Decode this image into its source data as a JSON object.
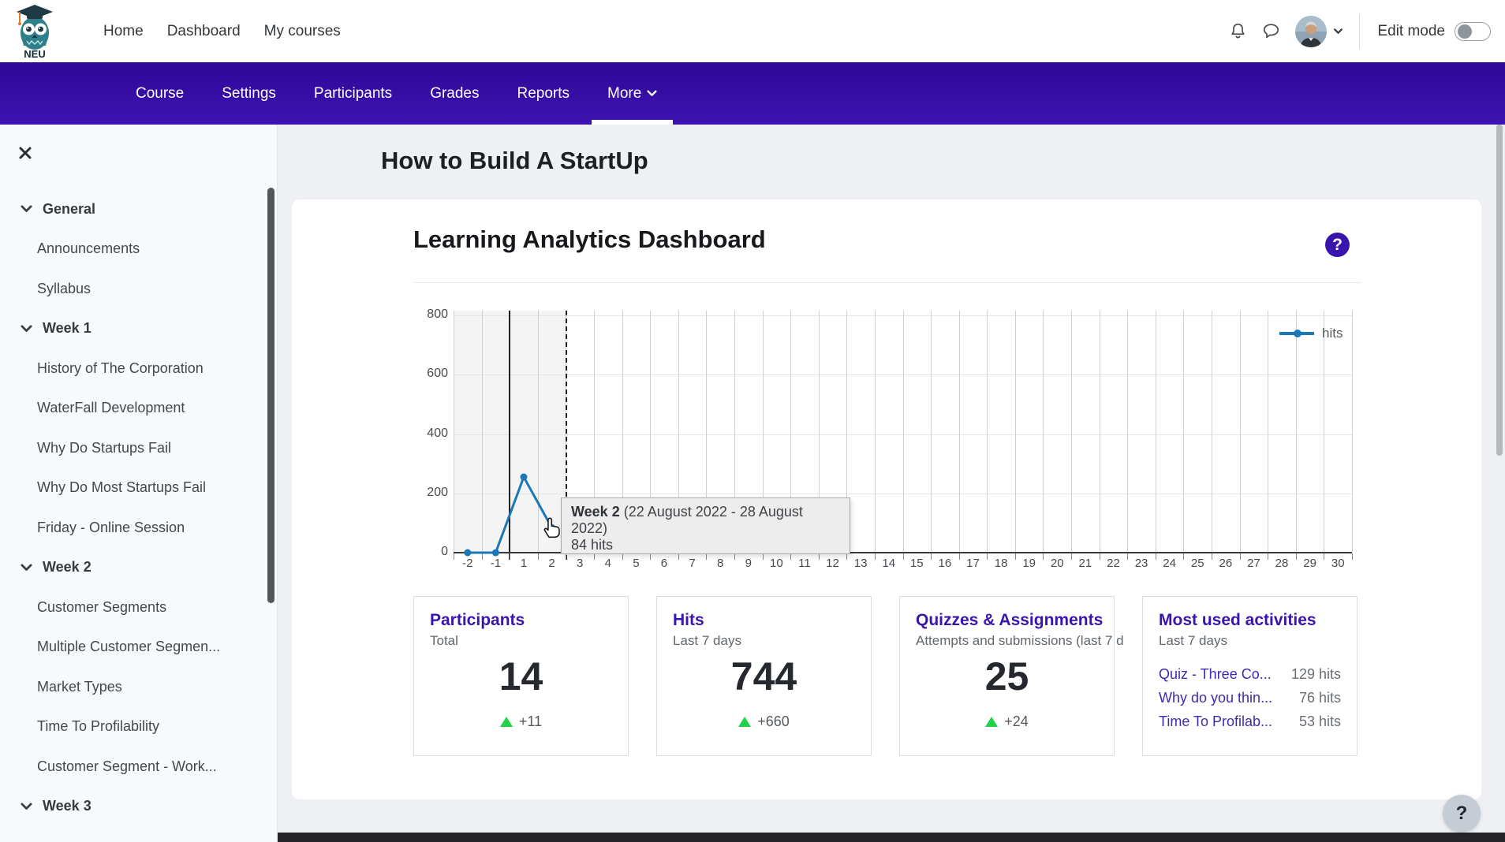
{
  "topbar": {
    "logo": "NEU",
    "nav_items": [
      "Home",
      "Dashboard",
      "My courses"
    ],
    "edit_mode_label": "Edit mode"
  },
  "course_nav": {
    "tabs": [
      "Course",
      "Settings",
      "Participants",
      "Grades",
      "Reports",
      "More"
    ],
    "active_tab": "More"
  },
  "sidebar": {
    "items": [
      {
        "type": "section",
        "label": "General"
      },
      {
        "type": "link",
        "label": "Announcements"
      },
      {
        "type": "link",
        "label": "Syllabus"
      },
      {
        "type": "section",
        "label": "Week 1"
      },
      {
        "type": "link",
        "label": "History of The Corporation"
      },
      {
        "type": "link",
        "label": "WaterFall Development"
      },
      {
        "type": "link",
        "label": "Why Do Startups Fail"
      },
      {
        "type": "link",
        "label": "Why Do Most Startups Fail"
      },
      {
        "type": "link",
        "label": "Friday - Online Session"
      },
      {
        "type": "section",
        "label": "Week 2"
      },
      {
        "type": "link",
        "label": "Customer Segments"
      },
      {
        "type": "link",
        "label": "Multiple Customer Segmen..."
      },
      {
        "type": "link",
        "label": "Market Types"
      },
      {
        "type": "link",
        "label": "Time To Profilability"
      },
      {
        "type": "link",
        "label": "Customer Segment - Work..."
      },
      {
        "type": "section",
        "label": "Week 3"
      }
    ]
  },
  "page_title": "How to Build A StartUp",
  "panel": {
    "heading": "Learning Analytics Dashboard",
    "help_label": "?"
  },
  "chart_data": {
    "type": "line",
    "x_categories": [
      "-2",
      "-1",
      "1",
      "2",
      "3",
      "4",
      "5",
      "6",
      "7",
      "8",
      "9",
      "10",
      "11",
      "12",
      "13",
      "14",
      "15",
      "16",
      "17",
      "18",
      "19",
      "20",
      "21",
      "22",
      "23",
      "24",
      "25",
      "26",
      "27",
      "28",
      "29",
      "30"
    ],
    "xlabel": "",
    "ylabel": "",
    "ylim": [
      0,
      800
    ],
    "yticks": [
      0,
      200,
      400,
      600,
      800
    ],
    "grid": true,
    "legend": {
      "position": "top-right",
      "entries": [
        "hits"
      ]
    },
    "series": [
      {
        "name": "hits",
        "color": "#1b77b5",
        "points": [
          {
            "x": "-2",
            "y": 0
          },
          {
            "x": "-1",
            "y": 0
          },
          {
            "x": "1",
            "y": 255
          },
          {
            "x": "2",
            "y": 84
          }
        ]
      }
    ],
    "annotations": {
      "course_start_vline_between": [
        "-1",
        "1"
      ],
      "current_time_dashed_vline_between": [
        "2",
        "3"
      ],
      "shaded_past_region": true
    }
  },
  "chart_tooltip": {
    "title_bold": "Week 2",
    "title_rest": "(22 August 2022 - 28 August 2022)",
    "value": "84 hits"
  },
  "stat_cards": [
    {
      "title": "Participants",
      "subtitle": "Total",
      "value": "14",
      "delta": "+11"
    },
    {
      "title": "Hits",
      "subtitle": "Last 7 days",
      "value": "744",
      "delta": "+660"
    },
    {
      "title": "Quizzes & Assignments",
      "subtitle": "Attempts and submissions (last 7 d",
      "value": "25",
      "delta": "+24"
    }
  ],
  "activities_card": {
    "title": "Most used activities",
    "subtitle": "Last 7 days",
    "rows": [
      {
        "label": "Quiz - Three Co...",
        "hits": "129 hits"
      },
      {
        "label": "Why do you thin...",
        "hits": "76 hits"
      },
      {
        "label": "Time To Profilab...",
        "hits": "53 hits"
      }
    ]
  },
  "floating_help_label": "?",
  "colors": {
    "navbar_top": "#2e0896",
    "navbar_bottom": "#3d13b3",
    "accent_purple": "#3a15ad",
    "link_purple": "#4128b4",
    "chart_line_blue": "#1b77b5",
    "delta_green": "#1fd24a",
    "footer_dark": "#26262a"
  }
}
